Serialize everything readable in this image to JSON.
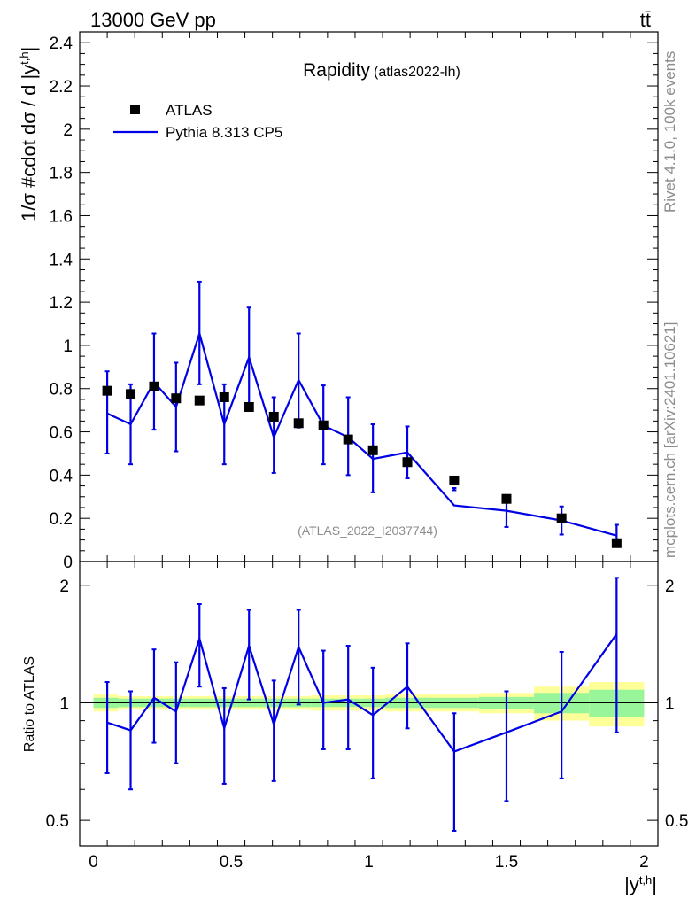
{
  "header": {
    "energy_label": "13000 GeV pp",
    "process_label": "tt̄"
  },
  "side_labels": {
    "rivet": "Rivet 4.1.0,  100k events",
    "mcplots": "mcplots.cern.ch [arXiv:2401.10621]"
  },
  "colors": {
    "mc": "#0000e6",
    "data": "#000000",
    "band_inner": "#99f599",
    "band_outer": "#ffff99"
  },
  "chart_data": [
    {
      "type": "scatter+line",
      "title": "Rapidity",
      "subtitle": "(atlas2022-lh)",
      "analysis_label": "(ATLAS_2022_I2037744)",
      "ylabel": "1/σ #cdot dσ / d |y",
      "ylabel_sup": "t,h",
      "ylabel_end": "|",
      "ylim": [
        0,
        2.45
      ],
      "yticks": [
        "0",
        "0.2",
        "0.4",
        "0.6",
        "0.8",
        "1",
        "1.2",
        "1.4",
        "1.6",
        "1.8",
        "2",
        "2.2",
        "2.4"
      ],
      "ytick_values": [
        0,
        0.2,
        0.4,
        0.6,
        0.8,
        1.0,
        1.2,
        1.4,
        1.6,
        1.8,
        2.0,
        2.2,
        2.4
      ],
      "legend": [
        {
          "name": "ATLAS",
          "kind": "marker"
        },
        {
          "name": "Pythia 8.313 CP5",
          "kind": "line"
        }
      ],
      "x": [
        0.05,
        0.135,
        0.22,
        0.3,
        0.385,
        0.475,
        0.565,
        0.655,
        0.745,
        0.835,
        0.925,
        1.015,
        1.14,
        1.31,
        1.5,
        1.7,
        1.9
      ],
      "data_values": [
        0.79,
        0.775,
        0.81,
        0.755,
        0.745,
        0.76,
        0.715,
        0.67,
        0.64,
        0.63,
        0.565,
        0.515,
        0.46,
        0.375,
        0.29,
        0.2,
        0.085
      ],
      "data_err": [
        0.01,
        0.01,
        0.01,
        0.01,
        0.01,
        0.01,
        0.01,
        0.01,
        0.01,
        0.01,
        0.01,
        0.01,
        0.01,
        0.01,
        0.01,
        0.01,
        0.01
      ],
      "mc_values": [
        0.685,
        0.635,
        0.83,
        0.715,
        1.055,
        0.635,
        0.945,
        0.575,
        0.84,
        0.63,
        0.575,
        0.475,
        0.505,
        0.26,
        0.235,
        0.19,
        0.12
      ],
      "mc_err_low": [
        0.5,
        0.45,
        0.61,
        0.51,
        0.82,
        0.45,
        0.72,
        0.41,
        0.62,
        0.45,
        0.4,
        0.32,
        0.385,
        0.33,
        0.16,
        0.125,
        0.075
      ],
      "mc_err_high": [
        0.88,
        0.82,
        1.055,
        0.92,
        1.295,
        0.82,
        1.175,
        0.76,
        1.055,
        0.815,
        0.76,
        0.635,
        0.625,
        0.34,
        0.3,
        0.255,
        0.17
      ]
    },
    {
      "type": "ratio",
      "ylabel": "Ratio to ATLAS",
      "yscale": "log",
      "ylim": [
        0.43,
        2.3
      ],
      "yticks": [
        "0.5",
        "1",
        "2"
      ],
      "ytick_values": [
        0.5,
        1,
        2
      ],
      "xlabel": "|y",
      "xlabel_sup": "t,h",
      "xlabel_end": "|",
      "xlim": [
        -0.05,
        2.05
      ],
      "xticks": [
        "0",
        "0.5",
        "1",
        "1.5",
        "2"
      ],
      "xtick_values": [
        0,
        0.5,
        1,
        1.5,
        2
      ],
      "x": [
        0.05,
        0.135,
        0.22,
        0.3,
        0.385,
        0.475,
        0.565,
        0.655,
        0.745,
        0.835,
        0.925,
        1.015,
        1.14,
        1.31,
        1.5,
        1.7,
        1.9
      ],
      "ratio_values": [
        0.89,
        0.85,
        1.03,
        0.95,
        1.46,
        0.86,
        1.4,
        0.88,
        1.39,
        1.0,
        1.02,
        0.93,
        1.1,
        0.75,
        0.84,
        0.95,
        1.5
      ],
      "ratio_err_low": [
        0.66,
        0.6,
        0.79,
        0.7,
        1.1,
        0.62,
        1.02,
        0.63,
        0.99,
        0.76,
        0.76,
        0.64,
        0.86,
        0.47,
        0.56,
        0.64,
        0.84
      ],
      "ratio_err_high": [
        1.13,
        1.07,
        1.37,
        1.27,
        1.79,
        1.09,
        1.73,
        1.14,
        1.73,
        1.36,
        1.4,
        1.23,
        1.42,
        0.94,
        1.07,
        1.35,
        2.09
      ],
      "band_edges": [
        0.0,
        0.09,
        0.18,
        0.26,
        0.34,
        0.43,
        0.52,
        0.61,
        0.7,
        0.79,
        0.88,
        0.97,
        1.06,
        1.22,
        1.4,
        1.6,
        1.8,
        2.0
      ],
      "band_inner": [
        0.03,
        0.025,
        0.025,
        0.025,
        0.025,
        0.025,
        0.025,
        0.025,
        0.025,
        0.025,
        0.025,
        0.025,
        0.03,
        0.03,
        0.035,
        0.06,
        0.08
      ],
      "band_outer": [
        0.05,
        0.04,
        0.04,
        0.04,
        0.04,
        0.04,
        0.04,
        0.04,
        0.04,
        0.045,
        0.045,
        0.045,
        0.05,
        0.05,
        0.06,
        0.1,
        0.13
      ]
    }
  ]
}
